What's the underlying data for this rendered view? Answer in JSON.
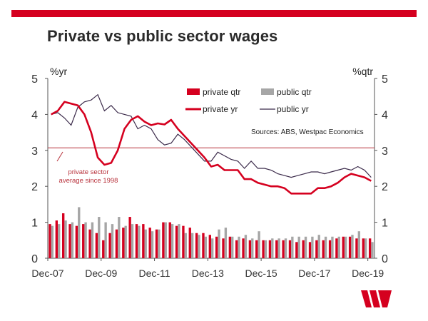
{
  "page": {
    "title": "Private vs public sector wages"
  },
  "colors": {
    "brand": "#d5001f",
    "private": "#d5001f",
    "public_bar": "#a6a6a6",
    "public_line": "#3b2a4a",
    "avg_line": "#b8323c"
  },
  "chart_data": {
    "type": "bar+line",
    "title": "Private vs public sector wages",
    "y_left_label": "%yr",
    "y_right_label": "%qtr",
    "ylim": [
      0,
      5
    ],
    "yticks": [
      0,
      1,
      2,
      3,
      4,
      5
    ],
    "x_tick_labels": [
      "Dec-07",
      "Dec-09",
      "Dec-11",
      "Dec-13",
      "Dec-15",
      "Dec-17",
      "Dec-19"
    ],
    "x_tick_indices": [
      0,
      8,
      16,
      24,
      32,
      40,
      48
    ],
    "n_quarters": 49,
    "legend": [
      "private qtr",
      "public qtr",
      "private yr",
      "public yr"
    ],
    "source": "Sources: ABS, Westpac Economics",
    "annotation": {
      "text_line1": "private sector",
      "text_line2": "average since 1998",
      "value": 3.07
    },
    "series": [
      {
        "name": "private qtr",
        "type": "bar",
        "values": [
          0.95,
          1.05,
          1.25,
          0.95,
          0.9,
          0.95,
          0.8,
          0.7,
          0.5,
          0.7,
          0.8,
          0.85,
          1.15,
          0.95,
          0.95,
          0.85,
          0.8,
          1.0,
          1.0,
          0.9,
          0.9,
          0.85,
          0.7,
          0.7,
          0.65,
          0.6,
          0.55,
          0.6,
          0.5,
          0.55,
          0.5,
          0.5,
          0.5,
          0.5,
          0.5,
          0.5,
          0.5,
          0.45,
          0.5,
          0.45,
          0.5,
          0.5,
          0.5,
          0.55,
          0.6,
          0.6,
          0.55,
          0.55,
          0.55
        ]
      },
      {
        "name": "public qtr",
        "type": "bar",
        "values": [
          0.9,
          0.95,
          1.05,
          1.0,
          1.42,
          1.0,
          1.0,
          1.15,
          1.0,
          0.95,
          1.15,
          0.9,
          0.95,
          0.9,
          0.8,
          0.75,
          0.8,
          1.0,
          0.95,
          0.95,
          0.7,
          0.7,
          0.65,
          0.6,
          0.55,
          0.8,
          0.85,
          0.6,
          0.6,
          0.65,
          0.55,
          0.75,
          0.5,
          0.55,
          0.55,
          0.55,
          0.6,
          0.6,
          0.6,
          0.6,
          0.65,
          0.6,
          0.6,
          0.6,
          0.6,
          0.65,
          0.75,
          0.55,
          0.45
        ]
      },
      {
        "name": "private yr",
        "type": "line",
        "values": [
          4.0,
          4.1,
          4.35,
          4.3,
          4.25,
          4.0,
          3.5,
          2.8,
          2.6,
          2.65,
          3.0,
          3.6,
          3.85,
          3.95,
          3.8,
          3.7,
          3.75,
          3.72,
          3.85,
          3.6,
          3.4,
          3.2,
          3.0,
          2.8,
          2.55,
          2.6,
          2.45,
          2.45,
          2.45,
          2.2,
          2.2,
          2.1,
          2.05,
          2.0,
          2.0,
          1.95,
          1.8,
          1.8,
          1.8,
          1.8,
          1.95,
          1.95,
          2.0,
          2.1,
          2.25,
          2.35,
          2.3,
          2.25,
          2.15
        ]
      },
      {
        "name": "public yr",
        "type": "line",
        "values": [
          4.0,
          4.05,
          3.9,
          3.7,
          4.2,
          4.35,
          4.4,
          4.55,
          4.1,
          4.25,
          4.05,
          4.0,
          3.95,
          3.6,
          3.7,
          3.6,
          3.3,
          3.15,
          3.2,
          3.45,
          3.3,
          3.1,
          2.9,
          2.7,
          2.7,
          2.95,
          2.85,
          2.75,
          2.7,
          2.5,
          2.7,
          2.5,
          2.5,
          2.45,
          2.35,
          2.3,
          2.25,
          2.3,
          2.35,
          2.4,
          2.4,
          2.35,
          2.4,
          2.45,
          2.5,
          2.45,
          2.55,
          2.45,
          2.25
        ]
      }
    ]
  }
}
